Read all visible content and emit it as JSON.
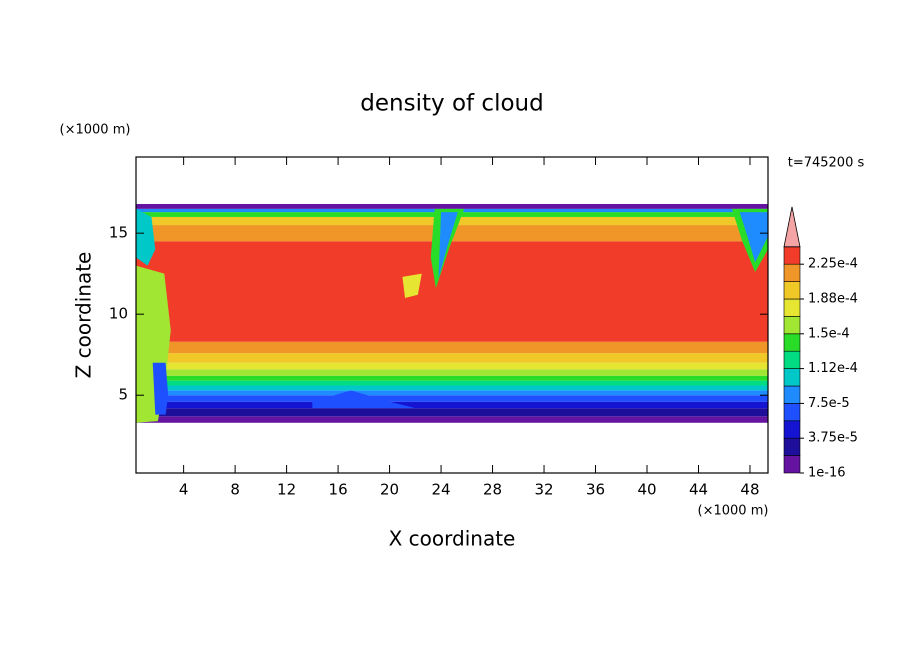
{
  "chart_data": {
    "type": "contour",
    "title": "density of cloud",
    "x_label": "X coordinate",
    "y_label": "Z coordinate",
    "x_unit": "(×1000 m)",
    "y_unit": "(×1000 m)",
    "annotation": "t=745200 s",
    "xlim": [
      0.3,
      49.4
    ],
    "ylim": [
      0.2,
      19.7
    ],
    "xticks": [
      4,
      8,
      12,
      16,
      20,
      24,
      28,
      32,
      36,
      40,
      44,
      48
    ],
    "yticks": [
      5,
      10,
      15
    ],
    "colorbar": {
      "colors": [
        "#6414a0",
        "#1e0f9b",
        "#1414d2",
        "#1e50ff",
        "#1e8cff",
        "#00c8c8",
        "#00dc82",
        "#28dc28",
        "#a0e632",
        "#e6e632",
        "#f0c828",
        "#f09628",
        "#f03c28"
      ],
      "extend_color": "#f4a4a4",
      "ticks": [
        {
          "value": 1e-16,
          "label": "1e-16"
        },
        {
          "value": 3.75e-05,
          "label": "3.75e-5"
        },
        {
          "value": 7.5e-05,
          "label": "7.5e-5"
        },
        {
          "value": 0.000112,
          "label": "1.12e-4"
        },
        {
          "value": 0.00015,
          "label": "1.5e-4"
        },
        {
          "value": 0.000188,
          "label": "1.88e-4"
        },
        {
          "value": 0.000225,
          "label": "2.25e-4"
        }
      ]
    }
  }
}
